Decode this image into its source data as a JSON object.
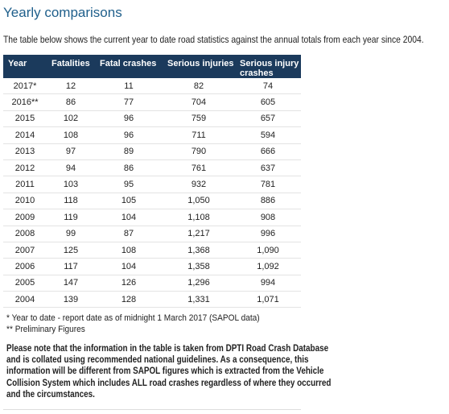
{
  "header": {
    "title": "Yearly comparisons",
    "intro": "The table below shows the current year to date road statistics against the annual totals from each year since 2004."
  },
  "table": {
    "columns": [
      "Year",
      "Fatalities",
      "Fatal crashes",
      "Serious injuries",
      "Serious injury crashes"
    ],
    "rows": [
      [
        "2017*",
        "12",
        "11",
        "82",
        "74"
      ],
      [
        "2016**",
        "86",
        "77",
        "704",
        "605"
      ],
      [
        "2015",
        "102",
        "96",
        "759",
        "657"
      ],
      [
        "2014",
        "108",
        "96",
        "711",
        "594"
      ],
      [
        "2013",
        "97",
        "89",
        "790",
        "666"
      ],
      [
        "2012",
        "94",
        "86",
        "761",
        "637"
      ],
      [
        "2011",
        "103",
        "95",
        "932",
        "781"
      ],
      [
        "2010",
        "118",
        "105",
        "1,050",
        "886"
      ],
      [
        "2009",
        "119",
        "104",
        "1,108",
        "908"
      ],
      [
        "2008",
        "99",
        "87",
        "1,217",
        "996"
      ],
      [
        "2007",
        "125",
        "108",
        "1,368",
        "1,090"
      ],
      [
        "2006",
        "117",
        "104",
        "1,358",
        "1,092"
      ],
      [
        "2005",
        "147",
        "126",
        "1,296",
        "994"
      ],
      [
        "2004",
        "139",
        "128",
        "1,331",
        "1,071"
      ]
    ]
  },
  "footnotes": [
    "*  Year to date - report date as of midnight 1 March 2017 (SAPOL data)",
    "** Preliminary Figures"
  ],
  "note": [
    "Please note that the information in the table is taken from DPTI Road Crash Database",
    "and is collated using recommended national guidelines.  As a consequence, this",
    "information will be different from SAPOL figures which is extracted from the Vehicle",
    "Collision System which includes ALL road crashes regardless of where they occurred",
    "and the circumstances."
  ]
}
